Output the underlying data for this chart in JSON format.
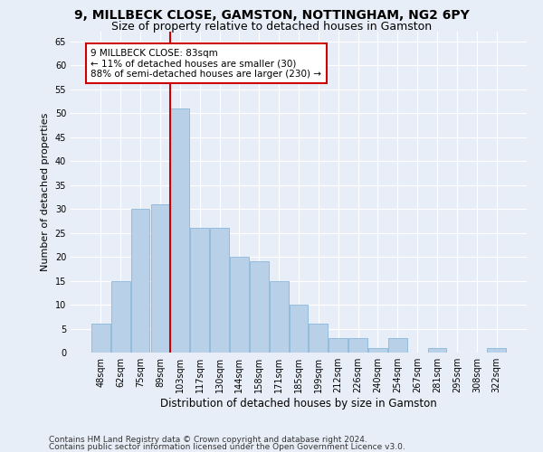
{
  "title": "9, MILLBECK CLOSE, GAMSTON, NOTTINGHAM, NG2 6PY",
  "subtitle": "Size of property relative to detached houses in Gamston",
  "xlabel": "Distribution of detached houses by size in Gamston",
  "ylabel": "Number of detached properties",
  "categories": [
    "48sqm",
    "62sqm",
    "75sqm",
    "89sqm",
    "103sqm",
    "117sqm",
    "130sqm",
    "144sqm",
    "158sqm",
    "171sqm",
    "185sqm",
    "199sqm",
    "212sqm",
    "226sqm",
    "240sqm",
    "254sqm",
    "267sqm",
    "281sqm",
    "295sqm",
    "308sqm",
    "322sqm"
  ],
  "values": [
    6,
    15,
    30,
    31,
    51,
    26,
    26,
    20,
    19,
    15,
    10,
    6,
    3,
    3,
    1,
    3,
    0,
    1,
    0,
    0,
    1
  ],
  "bar_color": "#b8d0e8",
  "bar_edge_color": "#7aaed6",
  "vline_x_index": 3.5,
  "vline_color": "#cc0000",
  "annotation_text": "9 MILLBECK CLOSE: 83sqm\n← 11% of detached houses are smaller (30)\n88% of semi-detached houses are larger (230) →",
  "annotation_box_color": "white",
  "annotation_box_edge_color": "#cc0000",
  "ylim": [
    0,
    67
  ],
  "yticks": [
    0,
    5,
    10,
    15,
    20,
    25,
    30,
    35,
    40,
    45,
    50,
    55,
    60,
    65
  ],
  "footer_line1": "Contains HM Land Registry data © Crown copyright and database right 2024.",
  "footer_line2": "Contains public sector information licensed under the Open Government Licence v3.0.",
  "background_color": "#e8eef7",
  "grid_color": "white",
  "title_fontsize": 10,
  "subtitle_fontsize": 9,
  "tick_fontsize": 7,
  "xlabel_fontsize": 8.5,
  "ylabel_fontsize": 8,
  "annotation_fontsize": 7.5,
  "footer_fontsize": 6.5
}
